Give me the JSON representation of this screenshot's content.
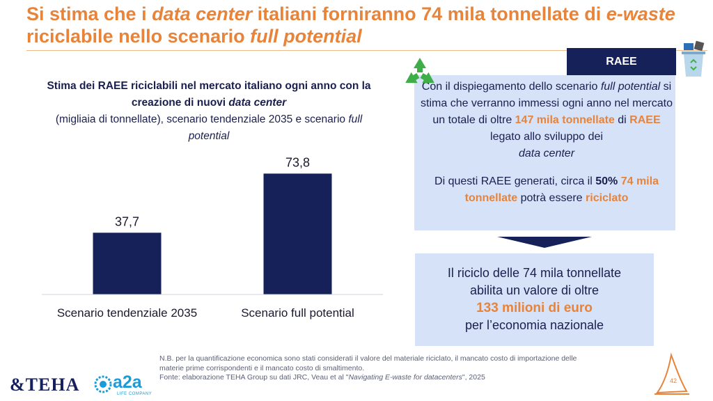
{
  "title": {
    "p1": "Si stima che i ",
    "p2": "data center",
    "p3": " italiani forniranno 74 mila tonnellate di ",
    "p4": "e-waste",
    "p5": " riciclabile nello scenario ",
    "p6": "full potential"
  },
  "chart_title": {
    "bold1": "Stima dei RAEE riciclabili nel mercato italiano ogni anno con la creazione di nuovi ",
    "bold_italic": "data center",
    "normal": "(migliaia di tonnellate), scenario tendenziale 2035 e scenario ",
    "italic": "full potential"
  },
  "chart_data": {
    "type": "bar",
    "categories": [
      "Scenario tendenziale 2035",
      "Scenario full potential"
    ],
    "values": [
      37.7,
      73.8
    ],
    "value_labels": [
      "37,7",
      "73,8"
    ],
    "ylim": [
      0,
      85
    ],
    "bar_color": "#16215a",
    "grid": false,
    "legend": "none"
  },
  "raee_tab": "RAEE",
  "box1": {
    "t1": "Con il dispiegamento dello scenario ",
    "t2": "full potential",
    "t3": " si stima che verranno immessi ogni anno nel mercato un totale di oltre ",
    "t4": "147 mila tonnellate",
    "t5": " di ",
    "t6": "RAEE",
    "t7": " legato allo sviluppo dei ",
    "t8": "data center",
    "t9": "Di questi RAEE generati, circa il ",
    "t10": "50%",
    "t11": " ",
    "t12": "74 mila tonnellate",
    "t13": " potrà essere ",
    "t14": "riciclato"
  },
  "box2": {
    "l1": "Il riciclo delle 74 mila tonnellate",
    "l2": "abilita un valore di oltre",
    "l3": "133 milioni di euro",
    "l4": "per l’economia nazionale"
  },
  "footnote": {
    "n1": "N.B. per la quantificazione economica sono stati considerati il valore del materiale riciclato, il mancato costo di importazione delle materie prime corrispondenti e il mancato costo di smaltimento.",
    "f1": "Fonte: elaborazione TEHA Group su dati JRC, Veau et al \"",
    "f2": "Navigating E-waste for datacenters",
    "f3": "\", 2025"
  },
  "logos": {
    "teha": "TEHA",
    "a2a": "a2a",
    "a2a_sub": "LIFE COMPANY"
  },
  "page_number": "42",
  "colors": {
    "accent": "#e8833a",
    "navy": "#16215a",
    "box": "#d5e2f8"
  },
  "icons": [
    "recycle-icon",
    "recycle-bin-icon",
    "sail-logo-icon",
    "teha-logo",
    "a2a-logo"
  ]
}
